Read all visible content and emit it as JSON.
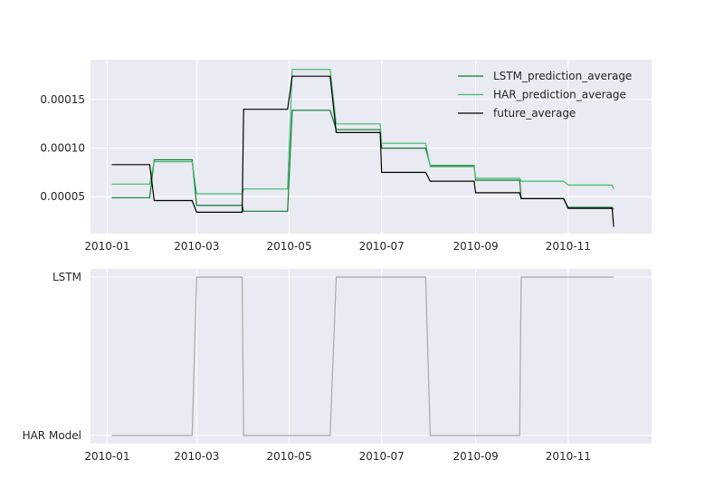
{
  "colors": {
    "background": "#eaeaf2",
    "grid": "#ffffff",
    "lstm": "#0b7a2e",
    "har": "#3dbb6b",
    "future": "#000000",
    "selection": "#a9a9a9"
  },
  "chart_data": [
    {
      "type": "line",
      "title": "",
      "xlabel": "",
      "ylabel": "",
      "x_ticks": [
        "2010-01",
        "2010-03",
        "2010-05",
        "2010-07",
        "2010-09",
        "2010-11"
      ],
      "y_ticks": [
        "0.00005",
        "0.00010",
        "0.00015"
      ],
      "y_tick_values": [
        5e-05,
        0.0001,
        0.00015
      ],
      "xlim": [
        "2009-12-21",
        "2010-12-26"
      ],
      "ylim": [
        1.2e-05,
        0.000191
      ],
      "legend_position": "top-right",
      "grid": true,
      "series": [
        {
          "name": "LSTM_prediction_average",
          "color_key": "lstm",
          "points": [
            [
              "2010-01-04",
              4.9e-05
            ],
            [
              "2010-01-29",
              4.9e-05
            ],
            [
              "2010-02-01",
              8.8e-05
            ],
            [
              "2010-02-26",
              8.8e-05
            ],
            [
              "2010-03-01",
              4.1e-05
            ],
            [
              "2010-03-31",
              4.1e-05
            ],
            [
              "2010-04-01",
              3.5e-05
            ],
            [
              "2010-04-30",
              3.5e-05
            ],
            [
              "2010-05-03",
              0.000139
            ],
            [
              "2010-05-28",
              0.000139
            ],
            [
              "2010-06-01",
              0.000119
            ],
            [
              "2010-06-30",
              0.000119
            ],
            [
              "2010-07-01",
              0.0001
            ],
            [
              "2010-07-30",
              0.0001
            ],
            [
              "2010-08-02",
              8.2e-05
            ],
            [
              "2010-08-31",
              8.2e-05
            ],
            [
              "2010-09-01",
              6.7e-05
            ],
            [
              "2010-09-30",
              6.7e-05
            ],
            [
              "2010-10-01",
              4.8e-05
            ],
            [
              "2010-10-29",
              4.8e-05
            ],
            [
              "2010-11-01",
              3.9e-05
            ],
            [
              "2010-11-30",
              3.9e-05
            ],
            [
              "2010-12-01",
              3.7e-05
            ]
          ]
        },
        {
          "name": "HAR_prediction_average",
          "color_key": "har",
          "points": [
            [
              "2010-01-04",
              6.3e-05
            ],
            [
              "2010-01-29",
              6.3e-05
            ],
            [
              "2010-02-01",
              8.6e-05
            ],
            [
              "2010-02-26",
              8.6e-05
            ],
            [
              "2010-03-01",
              5.3e-05
            ],
            [
              "2010-03-31",
              5.3e-05
            ],
            [
              "2010-04-01",
              5.8e-05
            ],
            [
              "2010-04-30",
              5.8e-05
            ],
            [
              "2010-05-03",
              0.000181
            ],
            [
              "2010-05-28",
              0.000181
            ],
            [
              "2010-06-01",
              0.000125
            ],
            [
              "2010-06-30",
              0.000125
            ],
            [
              "2010-07-01",
              0.000105
            ],
            [
              "2010-07-30",
              0.000105
            ],
            [
              "2010-08-02",
              8.1e-05
            ],
            [
              "2010-08-31",
              8.1e-05
            ],
            [
              "2010-09-01",
              6.9e-05
            ],
            [
              "2010-09-30",
              6.9e-05
            ],
            [
              "2010-10-01",
              6.6e-05
            ],
            [
              "2010-10-29",
              6.6e-05
            ],
            [
              "2010-11-01",
              6.2e-05
            ],
            [
              "2010-11-30",
              6.2e-05
            ],
            [
              "2010-12-01",
              5.8e-05
            ]
          ]
        },
        {
          "name": "future_average",
          "color_key": "future",
          "points": [
            [
              "2010-01-04",
              8.3e-05
            ],
            [
              "2010-01-29",
              8.3e-05
            ],
            [
              "2010-02-01",
              4.6e-05
            ],
            [
              "2010-02-26",
              4.6e-05
            ],
            [
              "2010-03-01",
              3.4e-05
            ],
            [
              "2010-03-31",
              3.4e-05
            ],
            [
              "2010-04-01",
              0.00014
            ],
            [
              "2010-04-30",
              0.00014
            ],
            [
              "2010-05-03",
              0.000174
            ],
            [
              "2010-05-28",
              0.000174
            ],
            [
              "2010-06-01",
              0.000116
            ],
            [
              "2010-06-30",
              0.000116
            ],
            [
              "2010-07-01",
              7.5e-05
            ],
            [
              "2010-07-30",
              7.5e-05
            ],
            [
              "2010-08-02",
              6.6e-05
            ],
            [
              "2010-08-31",
              6.6e-05
            ],
            [
              "2010-09-01",
              5.4e-05
            ],
            [
              "2010-09-30",
              5.4e-05
            ],
            [
              "2010-10-01",
              4.8e-05
            ],
            [
              "2010-10-29",
              4.8e-05
            ],
            [
              "2010-11-01",
              3.8e-05
            ],
            [
              "2010-11-30",
              3.8e-05
            ],
            [
              "2010-12-01",
              1.9e-05
            ]
          ]
        }
      ]
    },
    {
      "type": "line",
      "title": "",
      "xlabel": "",
      "ylabel": "",
      "x_ticks": [
        "2010-01",
        "2010-03",
        "2010-05",
        "2010-07",
        "2010-09",
        "2010-11"
      ],
      "xlim": [
        "2009-12-21",
        "2010-12-26"
      ],
      "categories": [
        "HAR Model",
        "LSTM"
      ],
      "grid": true,
      "series": [
        {
          "name": "",
          "color_key": "selection",
          "points": [
            [
              "2010-01-04",
              "HAR Model"
            ],
            [
              "2010-02-26",
              "HAR Model"
            ],
            [
              "2010-03-01",
              "LSTM"
            ],
            [
              "2010-03-31",
              "LSTM"
            ],
            [
              "2010-04-01",
              "HAR Model"
            ],
            [
              "2010-05-28",
              "HAR Model"
            ],
            [
              "2010-06-01",
              "LSTM"
            ],
            [
              "2010-07-30",
              "LSTM"
            ],
            [
              "2010-08-02",
              "HAR Model"
            ],
            [
              "2010-09-30",
              "HAR Model"
            ],
            [
              "2010-10-01",
              "LSTM"
            ],
            [
              "2010-12-01",
              "LSTM"
            ]
          ]
        }
      ]
    }
  ]
}
